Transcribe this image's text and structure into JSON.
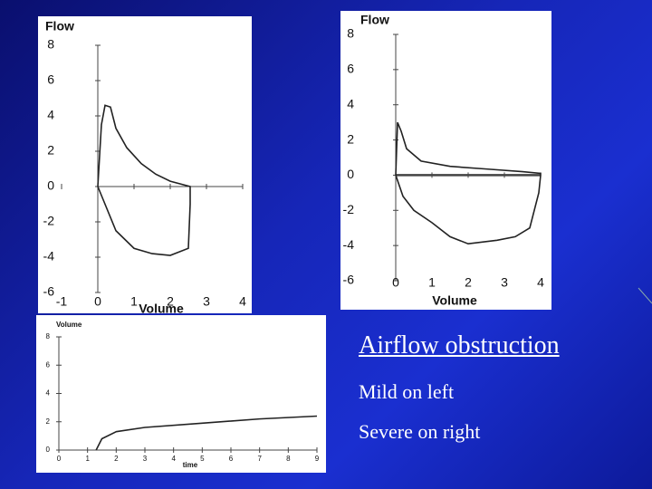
{
  "chart_data": [
    {
      "type": "line",
      "y_label": "Flow",
      "x_label": "Volume",
      "x": [
        0,
        0.1,
        0.2,
        0.35,
        0.5,
        0.8,
        1.2,
        1.6,
        2.0,
        2.55,
        2.55,
        2.5,
        2.0,
        1.5,
        1.0,
        0.5,
        0.1,
        0
      ],
      "series": [
        {
          "color": "#222222",
          "values": [
            0,
            3.5,
            4.6,
            4.5,
            3.3,
            2.2,
            1.3,
            0.7,
            0.3,
            0,
            -1.0,
            -3.5,
            -3.9,
            -3.8,
            -3.5,
            -2.5,
            -0.5,
            0
          ]
        }
      ],
      "xlim": [
        -1,
        4
      ],
      "ylim": [
        -6,
        8
      ],
      "xticks": [
        -1,
        0,
        1,
        2,
        3,
        4
      ],
      "yticks": [
        -6,
        -4,
        -2,
        0,
        2,
        4,
        6,
        8
      ]
    },
    {
      "type": "line",
      "y_label": "Flow",
      "x_label": "Volume",
      "x": [
        0,
        0.05,
        0.15,
        0.3,
        0.7,
        1.5,
        2.5,
        3.5,
        4.0,
        4.0,
        3.95,
        3.7,
        3.3,
        2.8,
        2.0,
        1.5,
        1.0,
        0.5,
        0.2,
        0
      ],
      "series": [
        {
          "color": "#222222",
          "values": [
            0,
            3,
            2.5,
            1.5,
            0.8,
            0.5,
            0.35,
            0.2,
            0.1,
            0,
            -1,
            -3,
            -3.5,
            -3.7,
            -3.9,
            -3.5,
            -2.7,
            -2,
            -1.2,
            0
          ]
        }
      ],
      "xlim": [
        -1.5,
        4
      ],
      "ylim": [
        -6,
        8
      ],
      "xticks": [
        0,
        1,
        2,
        3,
        4
      ],
      "yticks": [
        -6,
        -4,
        -2,
        0,
        2,
        4,
        6,
        8
      ]
    },
    {
      "type": "line",
      "y_label": "Volume",
      "x_label": "time",
      "x": [
        1.3,
        1.5,
        2,
        3,
        5,
        7,
        9
      ],
      "series": [
        {
          "color": "#222222",
          "values": [
            0,
            0.8,
            1.3,
            1.6,
            1.9,
            2.2,
            2.4
          ]
        }
      ],
      "xlim": [
        0,
        9
      ],
      "ylim": [
        0,
        8
      ],
      "xticks": [
        0,
        1,
        2,
        3,
        4,
        5,
        6,
        7,
        8,
        9
      ],
      "yticks": [
        0,
        2,
        4,
        6,
        8
      ]
    }
  ],
  "slide": {
    "heading": "Airflow obstruction",
    "lines": [
      "Mild on left",
      "Severe on right"
    ]
  }
}
